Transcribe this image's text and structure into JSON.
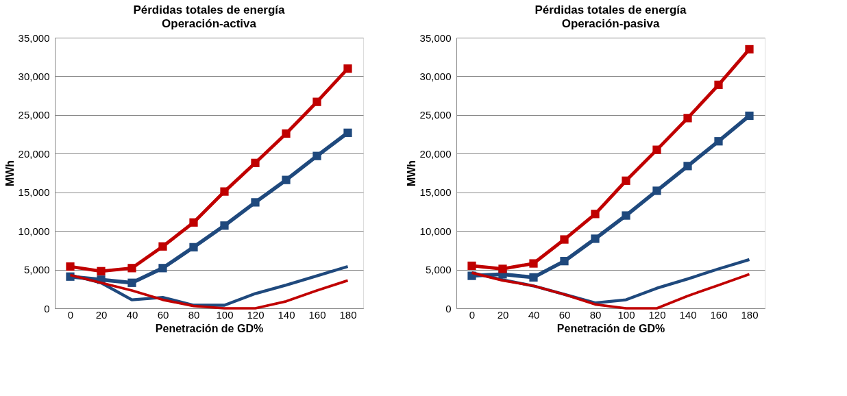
{
  "chart_data": [
    {
      "type": "line",
      "title": "Pérdidas totales de energía",
      "subtitle": "Operación-activa",
      "xlabel": "Penetración de GD%",
      "ylabel": "MWh",
      "categories": [
        "0",
        "20",
        "40",
        "60",
        "80",
        "100",
        "120",
        "140",
        "160",
        "180"
      ],
      "ylim": [
        0,
        35000
      ],
      "yticks": [
        {
          "value": 0,
          "label": "0"
        },
        {
          "value": 5000,
          "label": "5,000"
        },
        {
          "value": 10000,
          "label": "10,000"
        },
        {
          "value": 15000,
          "label": "15,000"
        },
        {
          "value": 20000,
          "label": "20,000"
        },
        {
          "value": 25000,
          "label": "25,000"
        },
        {
          "value": 30000,
          "label": "30,000"
        },
        {
          "value": 35000,
          "label": "35,000"
        }
      ],
      "grid": "y",
      "legend": false,
      "series": [
        {
          "color": "#1f497d",
          "marker": "square",
          "values": [
            4100,
            3700,
            3300,
            5200,
            7900,
            10700,
            13700,
            16600,
            19700,
            22700
          ]
        },
        {
          "color": "#c00000",
          "marker": "square",
          "values": [
            5400,
            4800,
            5200,
            8000,
            11100,
            15100,
            18800,
            22600,
            26700,
            31000
          ]
        },
        {
          "color": "#1f497d",
          "marker": "none",
          "values": [
            4300,
            3300,
            1100,
            1400,
            400,
            400,
            1900,
            3000,
            4200,
            5400
          ]
        },
        {
          "color": "#c00000",
          "marker": "none",
          "values": [
            4300,
            3300,
            2300,
            1100,
            300,
            0,
            0,
            900,
            2300,
            3600
          ]
        }
      ]
    },
    {
      "type": "line",
      "title": "Pérdidas totales de energía",
      "subtitle": "Operación-pasiva",
      "xlabel": "Penetración de GD%",
      "ylabel": "MWh",
      "categories": [
        "0",
        "20",
        "40",
        "60",
        "80",
        "100",
        "120",
        "140",
        "160",
        "180"
      ],
      "ylim": [
        0,
        35000
      ],
      "yticks": [
        {
          "value": 0,
          "label": "0"
        },
        {
          "value": 5000,
          "label": "5,000"
        },
        {
          "value": 10000,
          "label": "10,000"
        },
        {
          "value": 15000,
          "label": "15,000"
        },
        {
          "value": 20000,
          "label": "20,000"
        },
        {
          "value": 25000,
          "label": "25,000"
        },
        {
          "value": 30000,
          "label": "30,000"
        },
        {
          "value": 35000,
          "label": "35,000"
        }
      ],
      "grid": "y",
      "legend": false,
      "series": [
        {
          "color": "#1f497d",
          "marker": "square",
          "values": [
            4200,
            4400,
            4000,
            6100,
            9000,
            12000,
            15200,
            18400,
            21600,
            24900
          ]
        },
        {
          "color": "#c00000",
          "marker": "square",
          "values": [
            5500,
            5100,
            5800,
            8900,
            12200,
            16500,
            20500,
            24600,
            28900,
            33500
          ]
        },
        {
          "color": "#1f497d",
          "marker": "none",
          "values": [
            4600,
            3700,
            2900,
            1800,
            700,
            1100,
            2600,
            3800,
            5100,
            6300
          ]
        },
        {
          "color": "#c00000",
          "marker": "none",
          "values": [
            4600,
            3600,
            2900,
            1800,
            500,
            0,
            0,
            1600,
            3000,
            4400
          ]
        }
      ]
    }
  ]
}
